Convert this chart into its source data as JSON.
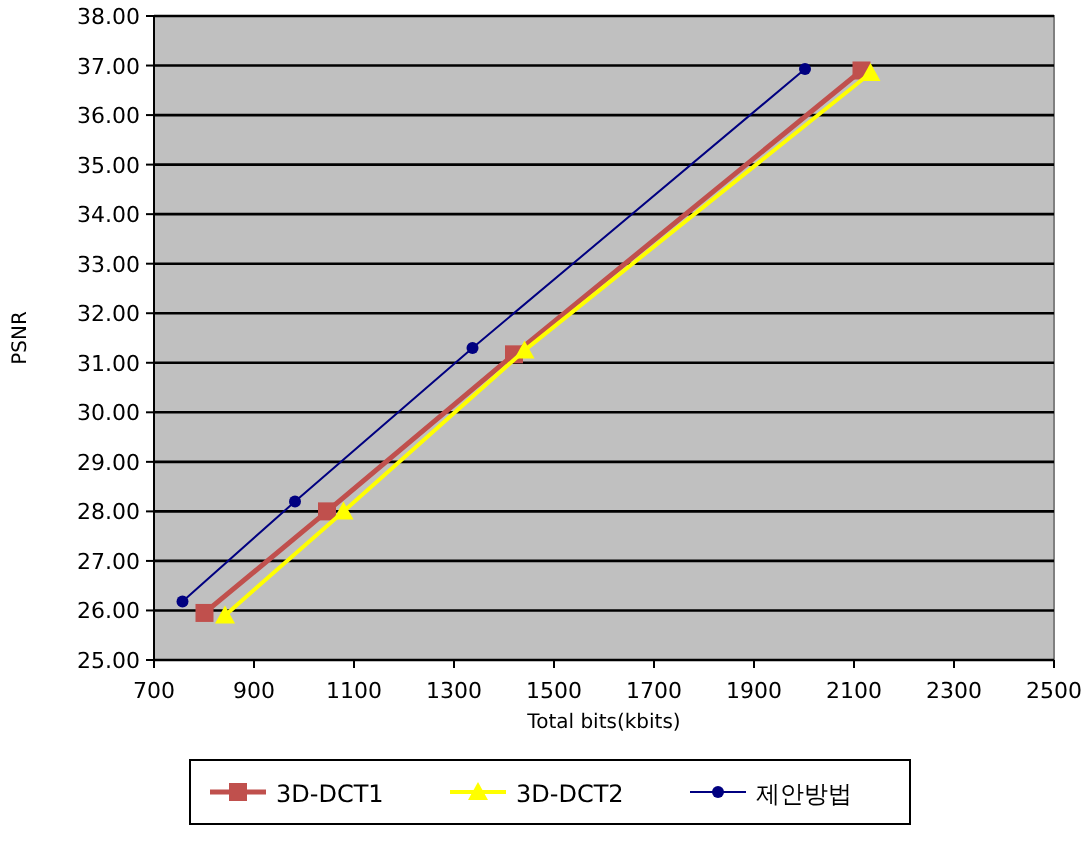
{
  "chart_data": {
    "type": "line",
    "xlabel": "Total bits(kbits)",
    "ylabel": "PSNR",
    "xlim": [
      700,
      2500
    ],
    "ylim": [
      25,
      38
    ],
    "xticks": [
      700,
      900,
      1100,
      1300,
      1500,
      1700,
      1900,
      2100,
      2300,
      2500
    ],
    "yticks": [
      {
        "value": 25,
        "label": "25.00"
      },
      {
        "value": 26,
        "label": "26.00"
      },
      {
        "value": 27,
        "label": "27.00"
      },
      {
        "value": 28,
        "label": "28.00"
      },
      {
        "value": 29,
        "label": "29.00"
      },
      {
        "value": 30,
        "label": "30.00"
      },
      {
        "value": 31,
        "label": "31.00"
      },
      {
        "value": 32,
        "label": "32.00"
      },
      {
        "value": 33,
        "label": "33.00"
      },
      {
        "value": 34,
        "label": "34.00"
      },
      {
        "value": 35,
        "label": "35.00"
      },
      {
        "value": 36,
        "label": "36.00"
      },
      {
        "value": 37,
        "label": "37.00"
      },
      {
        "value": 38,
        "label": "38.00"
      }
    ],
    "grid": "y",
    "legend": "bottom",
    "series": [
      {
        "name": "3D-DCT1",
        "color": "#c0504d",
        "marker": "square",
        "x": [
          801,
          1046,
          1420,
          2115
        ],
        "values": [
          25.95,
          28.0,
          31.17,
          36.9
        ]
      },
      {
        "name": "3D-DCT2",
        "color": "#ffff00",
        "marker": "triangle",
        "x": [
          842,
          1079,
          1441,
          2133
        ],
        "values": [
          25.9,
          28.0,
          31.25,
          36.85
        ]
      },
      {
        "name": "제안방법",
        "color": "#000080",
        "marker": "circle",
        "x": [
          757,
          982,
          1337,
          2002
        ],
        "values": [
          26.18,
          28.2,
          31.3,
          36.93
        ]
      }
    ]
  }
}
